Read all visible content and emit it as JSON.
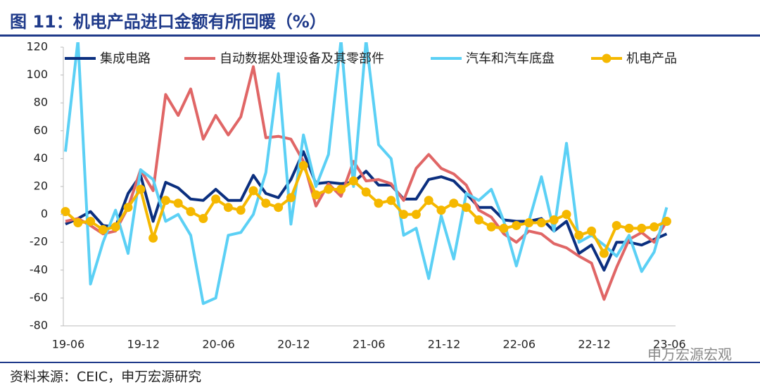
{
  "chart_data": {
    "type": "line",
    "title": "图 11：机电产品进口金额有所回暖（%）",
    "source": "资料来源：CEIC，申万宏源研究",
    "watermark": "申万宏源宏观",
    "categories": [
      "19-06",
      null,
      null,
      null,
      null,
      null,
      "19-12",
      null,
      null,
      null,
      null,
      null,
      "20-06",
      null,
      null,
      null,
      null,
      null,
      "20-12",
      null,
      null,
      null,
      null,
      null,
      "21-06",
      null,
      null,
      null,
      null,
      null,
      "21-12",
      null,
      null,
      null,
      null,
      null,
      "22-06",
      null,
      null,
      null,
      null,
      null,
      "22-12",
      null,
      null,
      null,
      null,
      null,
      "23-06"
    ],
    "ylim": [
      -80,
      120
    ],
    "yticks": [
      -80,
      -60,
      -40,
      -20,
      0,
      20,
      40,
      60,
      80,
      100,
      120
    ],
    "series": [
      {
        "name": "集成电路",
        "color": "#0b2f7f",
        "values": [
          -7,
          -3,
          2,
          -8,
          -9,
          15,
          28,
          -5,
          23,
          19,
          11,
          10,
          18,
          10,
          10,
          28,
          15,
          12,
          25,
          45,
          22,
          23,
          22,
          23,
          31,
          21,
          21,
          11,
          11,
          25,
          27,
          24,
          15,
          5,
          5,
          -4,
          -5,
          -5,
          -3,
          -12,
          -5,
          -28,
          -22,
          -40,
          -20,
          -20,
          -22,
          -18,
          -14
        ]
      },
      {
        "name": "自动数据处理设备及其零部件",
        "color": "#e06666",
        "values": [
          -5,
          -3,
          -8,
          -14,
          -12,
          5,
          32,
          17,
          86,
          71,
          90,
          54,
          71,
          57,
          70,
          106,
          55,
          56,
          54,
          38,
          6,
          22,
          13,
          38,
          24,
          25,
          22,
          10,
          33,
          43,
          33,
          29,
          21,
          3,
          -2,
          -14,
          -20,
          -12,
          -14,
          -21,
          -24,
          -30,
          -35,
          -61,
          -38,
          -18,
          -13,
          -20,
          -5
        ]
      },
      {
        "name": "汽车和汽车底盘",
        "color": "#5bd0f5",
        "values": [
          45,
          125,
          -50,
          -20,
          3,
          -28,
          32,
          25,
          -5,
          0,
          -15,
          -64,
          -60,
          -15,
          -13,
          0,
          30,
          101,
          -7,
          57,
          20,
          43,
          125,
          20,
          125,
          50,
          40,
          -15,
          -10,
          -46,
          -1,
          -32,
          15,
          10,
          18,
          -5,
          -37,
          -5,
          27,
          -12,
          51,
          -20,
          -15,
          -22,
          -30,
          -15,
          -41,
          -27,
          5
        ]
      },
      {
        "name": "机电产品",
        "color": "#f5b800",
        "marker": "circle",
        "values": [
          2,
          -6,
          -5,
          -11,
          -9,
          5,
          18,
          -17,
          10,
          8,
          2,
          -3,
          11,
          5,
          3,
          17,
          8,
          5,
          12,
          35,
          14,
          18,
          18,
          24,
          16,
          8,
          10,
          0,
          0,
          10,
          3,
          8,
          5,
          -4,
          -9,
          -10,
          -8,
          -6,
          -6,
          -4,
          0,
          -15,
          -12,
          -28,
          -8,
          -10,
          -10,
          -9,
          -5
        ]
      }
    ]
  }
}
